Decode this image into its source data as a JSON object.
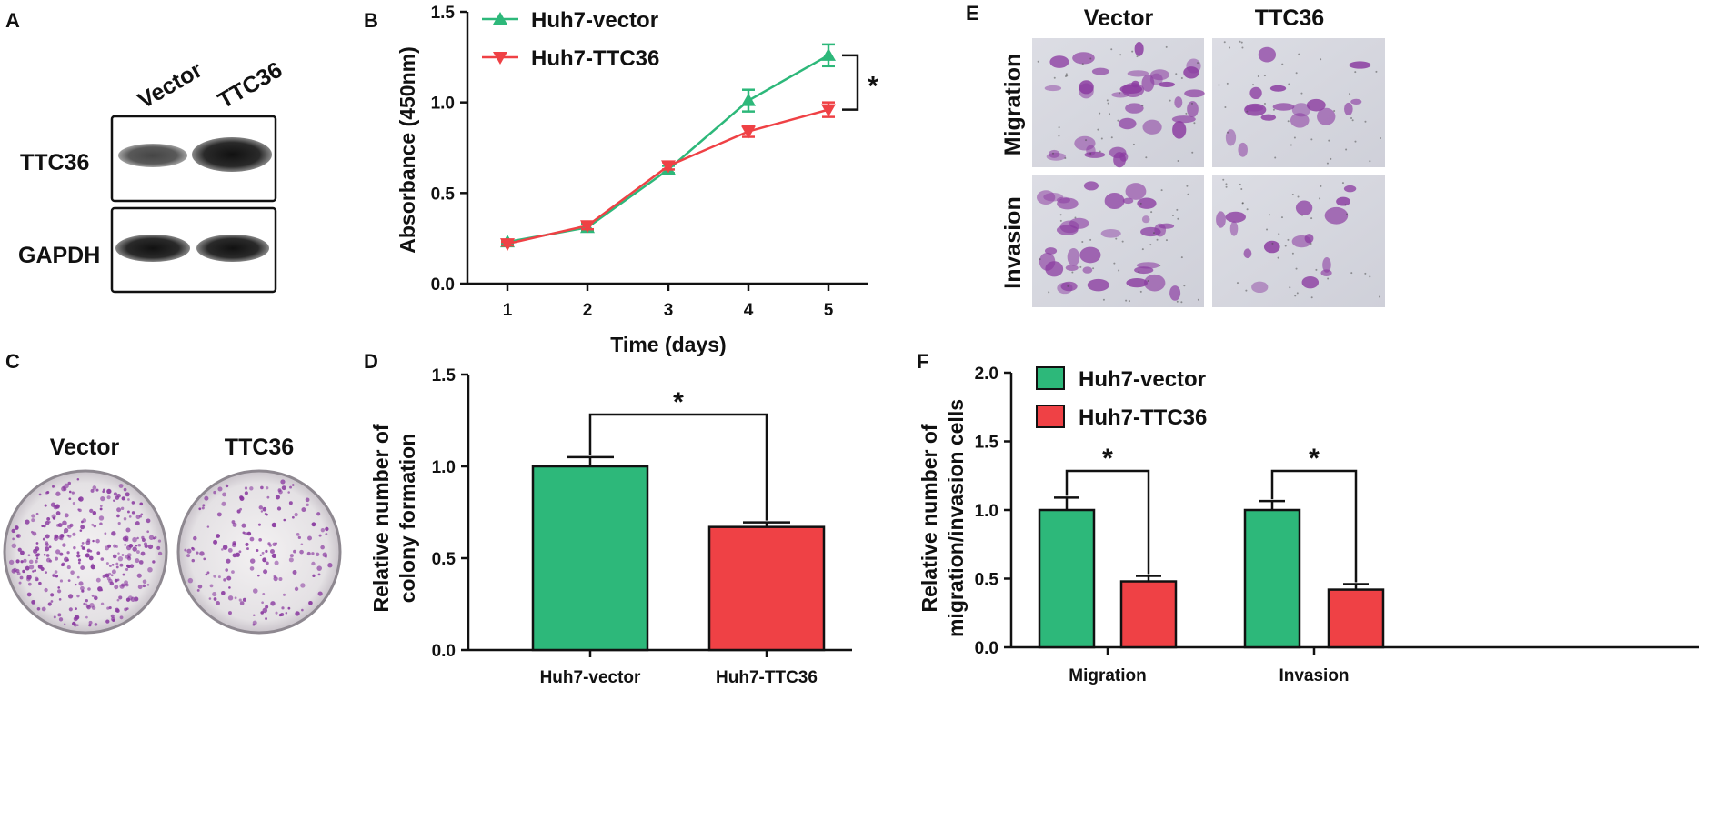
{
  "colors": {
    "vector": "#2db87a",
    "ttc36": "#ef4145",
    "stain": "#8a3aa0",
    "axis": "#111111"
  },
  "panel_labels": {
    "a": "A",
    "b": "B",
    "c": "C",
    "d": "D",
    "e": "E",
    "f": "F"
  },
  "panel_a": {
    "lanes": [
      "Vector",
      "TTC36"
    ],
    "rows": [
      "TTC36",
      "GAPDH"
    ]
  },
  "panel_c": {
    "dishes": [
      "Vector",
      "TTC36"
    ]
  },
  "panel_e": {
    "columns": [
      "Vector",
      "TTC36"
    ],
    "rows": [
      "Migration",
      "Invasion"
    ]
  },
  "chart_data": [
    {
      "id": "B",
      "type": "line",
      "xlabel": "Time (days)",
      "ylabel": "Absorbance (450nm)",
      "x": [
        1,
        2,
        3,
        4,
        5
      ],
      "ylim": [
        0,
        1.5
      ],
      "yticks": [
        "0.0",
        "0.5",
        "1.0",
        "1.5"
      ],
      "xticks": [
        "1",
        "2",
        "3",
        "4",
        "5"
      ],
      "series": [
        {
          "name": "Huh7-vector",
          "values": [
            0.23,
            0.31,
            0.63,
            1.01,
            1.26
          ],
          "errors": [
            0.01,
            0.02,
            0.02,
            0.06,
            0.06
          ]
        },
        {
          "name": "Huh7-TTC36",
          "values": [
            0.22,
            0.32,
            0.65,
            0.84,
            0.96
          ],
          "errors": [
            0.01,
            0.02,
            0.02,
            0.03,
            0.04
          ]
        }
      ],
      "significance": "*"
    },
    {
      "id": "D",
      "type": "bar",
      "ylabel_lines": [
        "Relative number of",
        "colony formation"
      ],
      "categories": [
        "Huh7-vector",
        "Huh7-TTC36"
      ],
      "values": [
        1.0,
        0.67
      ],
      "errors": [
        0.05,
        0.025
      ],
      "ylim": [
        0,
        1.5
      ],
      "yticks": [
        "0.0",
        "0.5",
        "1.0",
        "1.5"
      ],
      "significance": "*"
    },
    {
      "id": "F",
      "type": "bar",
      "ylabel_lines": [
        "Relative number of",
        "migration/invasion cells"
      ],
      "categories": [
        "Migration",
        "Invasion"
      ],
      "ylim": [
        0,
        2.0
      ],
      "yticks": [
        "0.0",
        "0.5",
        "1.0",
        "1.5",
        "2.0"
      ],
      "series": [
        {
          "name": "Huh7-vector",
          "values": [
            1.0,
            1.0
          ],
          "errors": [
            0.09,
            0.065
          ]
        },
        {
          "name": "Huh7-TTC36",
          "values": [
            0.48,
            0.42
          ],
          "errors": [
            0.04,
            0.04
          ]
        }
      ],
      "significance": [
        "*",
        "*"
      ]
    }
  ]
}
